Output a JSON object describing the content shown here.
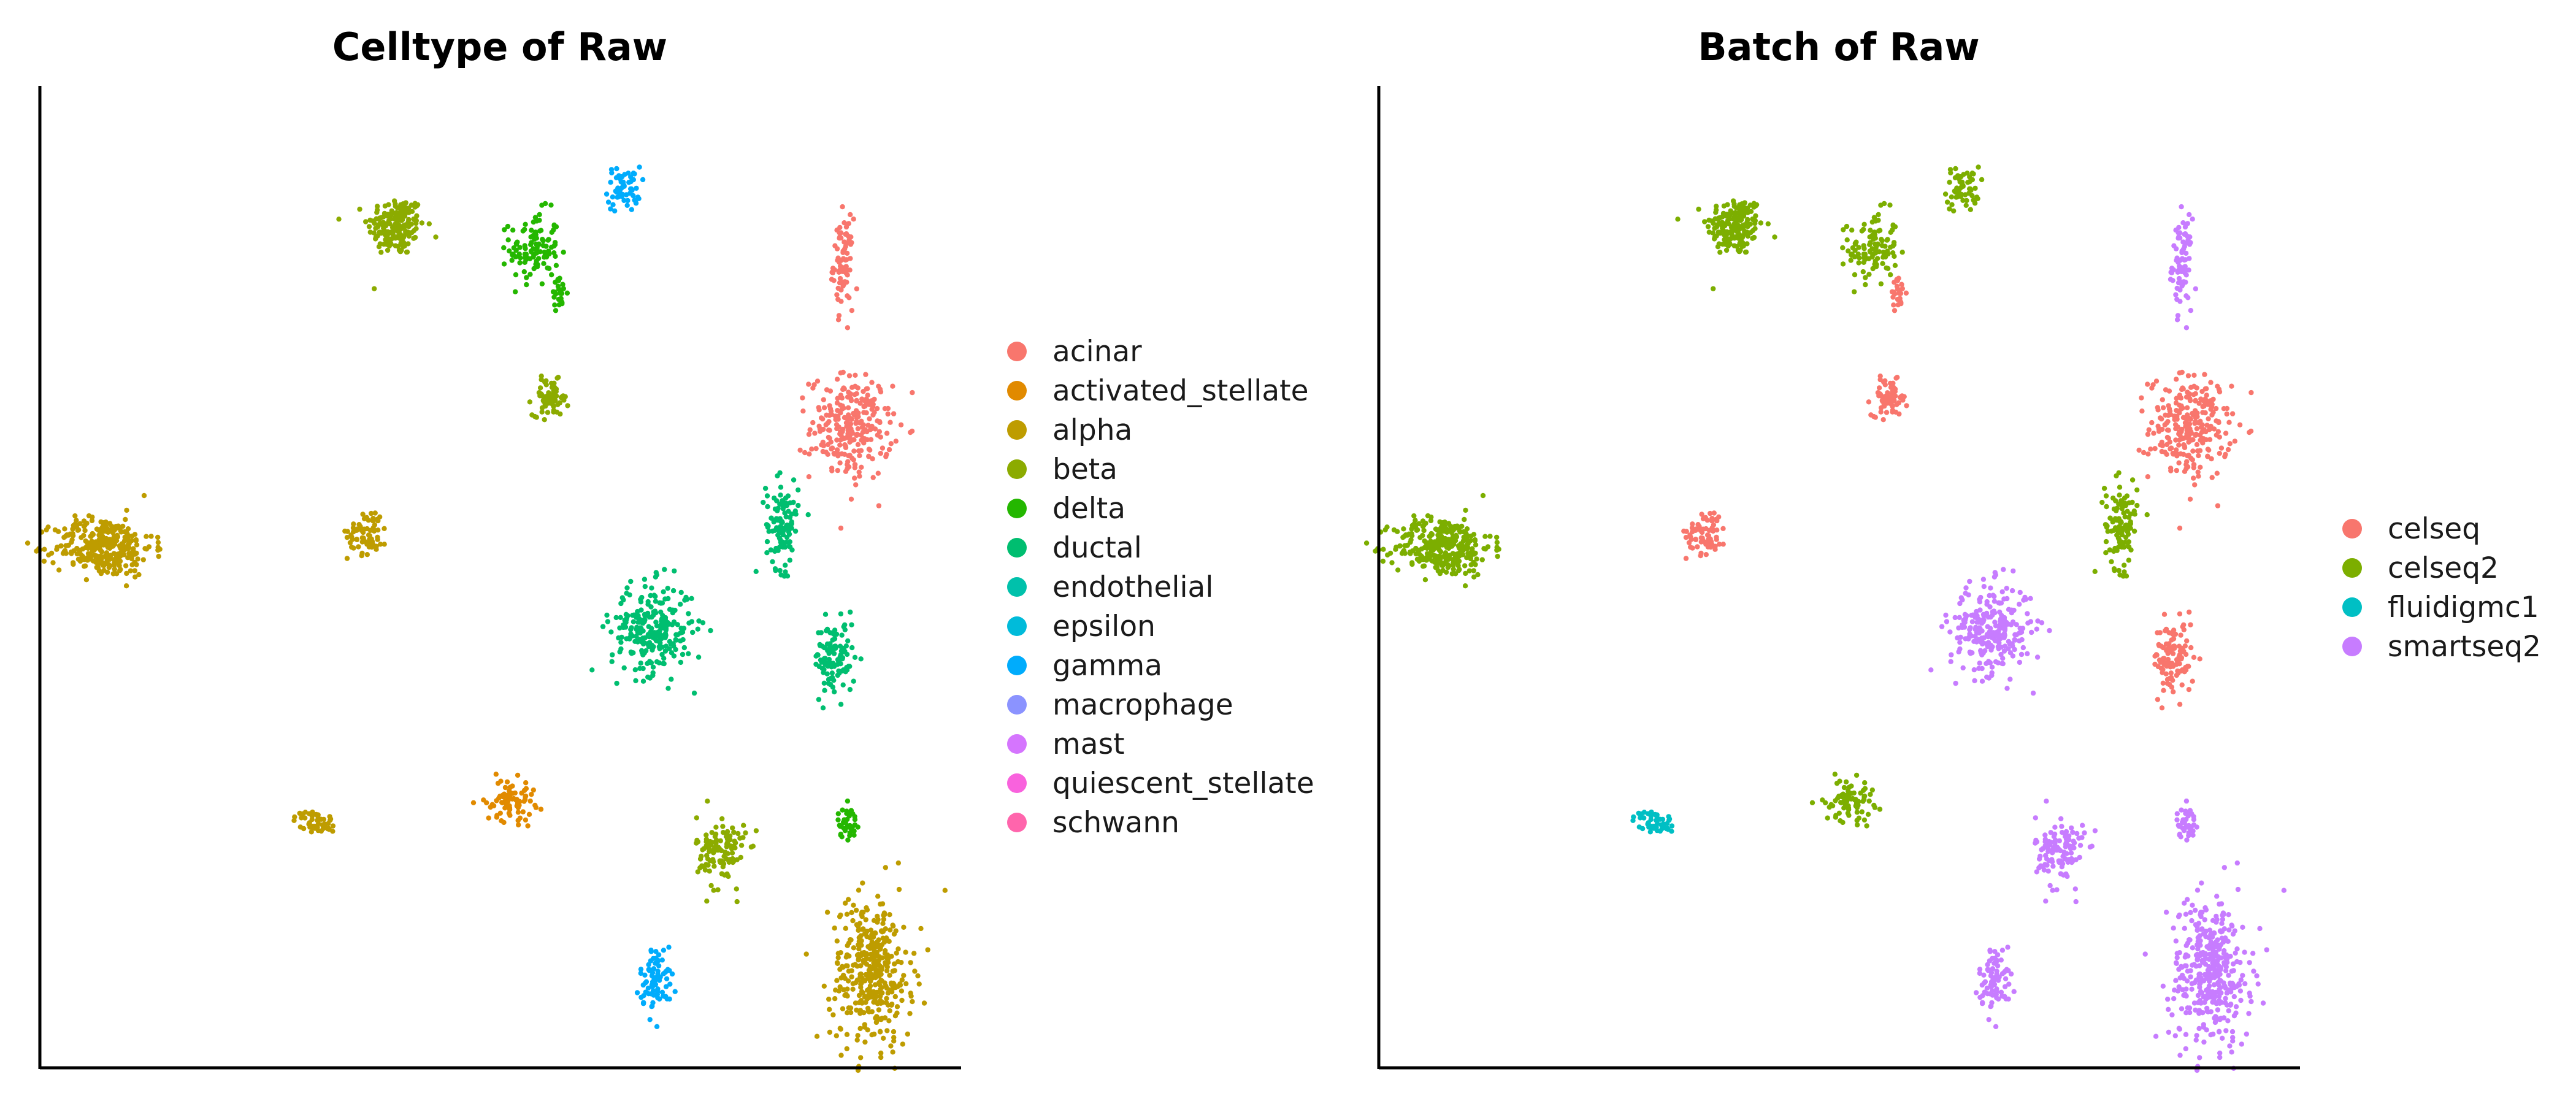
{
  "chart_data": [
    {
      "type": "scatter",
      "title": "Celltype of Raw",
      "axes": {
        "x_ticks": false,
        "y_ticks": false,
        "grid": false,
        "frame": "left-bottom"
      },
      "legend": {
        "placement": "right",
        "entries": [
          {
            "label": "acinar",
            "color": "#F8766D"
          },
          {
            "label": "activated_stellate",
            "color": "#E18A00"
          },
          {
            "label": "alpha",
            "color": "#BE9C00"
          },
          {
            "label": "beta",
            "color": "#8CAB00"
          },
          {
            "label": "delta",
            "color": "#24B700"
          },
          {
            "label": "ductal",
            "color": "#00BE70"
          },
          {
            "label": "endothelial",
            "color": "#00C1AB"
          },
          {
            "label": "epsilon",
            "color": "#00BBDA"
          },
          {
            "label": "gamma",
            "color": "#00ACFC"
          },
          {
            "label": "macrophage",
            "color": "#8B93FF"
          },
          {
            "label": "mast",
            "color": "#D575FE"
          },
          {
            "label": "quiescent_stellate",
            "color": "#F962DD"
          },
          {
            "label": "schwann",
            "color": "#FF65AC"
          }
        ]
      },
      "clusters": [
        {
          "x": 0.62,
          "y": 0.12,
          "rx": 0.035,
          "ry": 0.02,
          "n": 180,
          "label": "beta"
        },
        {
          "x": 0.96,
          "y": 0.09,
          "rx": 0.03,
          "ry": 0.025,
          "n": 110,
          "label": "delta"
        },
        {
          "x": 1.02,
          "y": 0.03,
          "rx": 0.01,
          "ry": 0.01,
          "n": 25,
          "label": "delta"
        },
        {
          "x": 1.18,
          "y": 0.17,
          "rx": 0.02,
          "ry": 0.015,
          "n": 60,
          "label": "gamma"
        },
        {
          "x": 1.72,
          "y": 0.07,
          "rx": 0.012,
          "ry": 0.03,
          "n": 80,
          "label": "acinar"
        },
        {
          "x": 1.74,
          "y": -0.15,
          "rx": 0.05,
          "ry": 0.035,
          "n": 260,
          "label": "acinar"
        },
        {
          "x": 1.0,
          "y": -0.11,
          "rx": 0.022,
          "ry": 0.012,
          "n": 70,
          "label": "beta"
        },
        {
          "x": -0.1,
          "y": -0.31,
          "rx": 0.06,
          "ry": 0.02,
          "n": 320,
          "label": "alpha"
        },
        {
          "x": 0.55,
          "y": -0.29,
          "rx": 0.025,
          "ry": 0.015,
          "n": 70,
          "label": "alpha"
        },
        {
          "x": 1.57,
          "y": -0.28,
          "rx": 0.02,
          "ry": 0.03,
          "n": 110,
          "label": "ductal"
        },
        {
          "x": 1.25,
          "y": -0.42,
          "rx": 0.05,
          "ry": 0.03,
          "n": 260,
          "label": "ductal"
        },
        {
          "x": 1.7,
          "y": -0.46,
          "rx": 0.025,
          "ry": 0.025,
          "n": 110,
          "label": "ductal"
        },
        {
          "x": 0.9,
          "y": -0.65,
          "rx": 0.03,
          "ry": 0.014,
          "n": 80,
          "label": "activated_stellate"
        },
        {
          "x": 0.42,
          "y": -0.68,
          "rx": 0.025,
          "ry": 0.008,
          "n": 50,
          "label": "alpha"
        },
        {
          "x": 1.73,
          "y": -0.68,
          "rx": 0.012,
          "ry": 0.01,
          "n": 40,
          "label": "delta"
        },
        {
          "x": 1.42,
          "y": -0.72,
          "rx": 0.03,
          "ry": 0.025,
          "n": 120,
          "label": "beta"
        },
        {
          "x": 1.26,
          "y": -0.89,
          "rx": 0.02,
          "ry": 0.022,
          "n": 80,
          "label": "gamma"
        },
        {
          "x": 1.79,
          "y": -0.88,
          "rx": 0.05,
          "ry": 0.05,
          "n": 380,
          "label": "alpha"
        }
      ]
    },
    {
      "type": "scatter",
      "title": "Batch of Raw",
      "axes": {
        "x_ticks": false,
        "y_ticks": false,
        "grid": false,
        "frame": "left-bottom"
      },
      "legend": {
        "placement": "right",
        "entries": [
          {
            "label": "celseq",
            "color": "#F8766D"
          },
          {
            "label": "celseq2",
            "color": "#7CAE00"
          },
          {
            "label": "fluidigmc1",
            "color": "#00BFC4"
          },
          {
            "label": "smartseq2",
            "color": "#C77CFF"
          }
        ]
      },
      "clusters": [
        {
          "x": 0.62,
          "y": 0.12,
          "rx": 0.035,
          "ry": 0.02,
          "n": 180,
          "label": "celseq2"
        },
        {
          "x": 0.96,
          "y": 0.09,
          "rx": 0.03,
          "ry": 0.025,
          "n": 110,
          "label": "celseq2"
        },
        {
          "x": 1.02,
          "y": 0.03,
          "rx": 0.01,
          "ry": 0.01,
          "n": 25,
          "label": "celseq"
        },
        {
          "x": 1.18,
          "y": 0.17,
          "rx": 0.02,
          "ry": 0.015,
          "n": 60,
          "label": "celseq2"
        },
        {
          "x": 1.72,
          "y": 0.07,
          "rx": 0.012,
          "ry": 0.03,
          "n": 80,
          "label": "smartseq2"
        },
        {
          "x": 1.74,
          "y": -0.15,
          "rx": 0.05,
          "ry": 0.035,
          "n": 260,
          "label": "celseq"
        },
        {
          "x": 1.0,
          "y": -0.11,
          "rx": 0.022,
          "ry": 0.012,
          "n": 70,
          "label": "celseq"
        },
        {
          "x": -0.1,
          "y": -0.31,
          "rx": 0.06,
          "ry": 0.02,
          "n": 320,
          "label": "celseq2"
        },
        {
          "x": 0.55,
          "y": -0.29,
          "rx": 0.025,
          "ry": 0.015,
          "n": 70,
          "label": "celseq"
        },
        {
          "x": 1.57,
          "y": -0.28,
          "rx": 0.02,
          "ry": 0.03,
          "n": 110,
          "label": "celseq2"
        },
        {
          "x": 1.25,
          "y": -0.42,
          "rx": 0.05,
          "ry": 0.03,
          "n": 260,
          "label": "smartseq2"
        },
        {
          "x": 1.7,
          "y": -0.46,
          "rx": 0.025,
          "ry": 0.025,
          "n": 110,
          "label": "celseq"
        },
        {
          "x": 0.9,
          "y": -0.65,
          "rx": 0.03,
          "ry": 0.014,
          "n": 80,
          "label": "celseq2"
        },
        {
          "x": 0.42,
          "y": -0.68,
          "rx": 0.025,
          "ry": 0.008,
          "n": 50,
          "label": "fluidigmc1"
        },
        {
          "x": 1.73,
          "y": -0.68,
          "rx": 0.012,
          "ry": 0.01,
          "n": 40,
          "label": "smartseq2"
        },
        {
          "x": 1.42,
          "y": -0.72,
          "rx": 0.03,
          "ry": 0.025,
          "n": 120,
          "label": "smartseq2"
        },
        {
          "x": 1.26,
          "y": -0.89,
          "rx": 0.02,
          "ry": 0.022,
          "n": 80,
          "label": "smartseq2"
        },
        {
          "x": 1.79,
          "y": -0.88,
          "rx": 0.05,
          "ry": 0.05,
          "n": 380,
          "label": "smartseq2"
        }
      ]
    }
  ]
}
